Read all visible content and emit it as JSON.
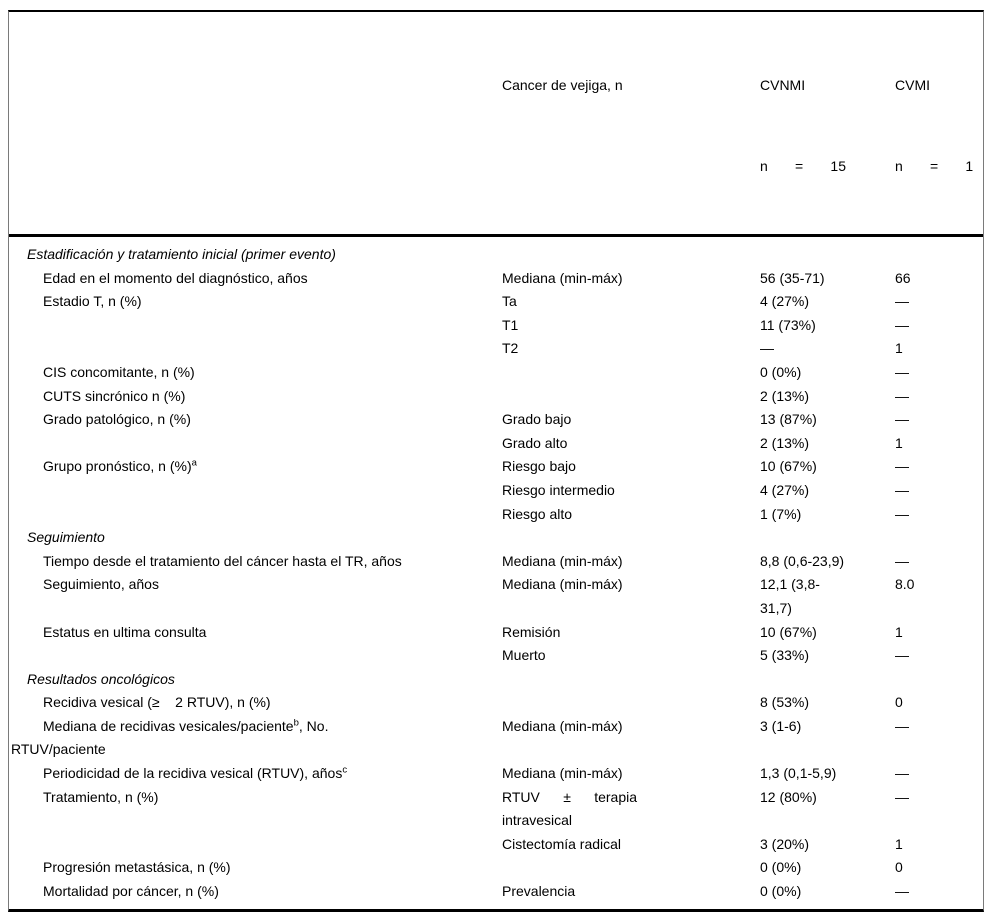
{
  "table": {
    "header": {
      "col1_label": "",
      "col2_label": "Cancer de vejiga, n",
      "cvnmi": {
        "label": "CVNMI",
        "n_line": "n       =       15"
      },
      "cvmi": {
        "label": "CVMI",
        "n_line": "n       =       1"
      }
    },
    "rows": [
      {
        "type": "section",
        "label": "Estadificación y tratamiento inicial (primer evento)",
        "col2": "",
        "cvnmi": "",
        "cvmi": ""
      },
      {
        "type": "item",
        "label": "Edad en el momento del diagnóstico, años",
        "col2": "Mediana (min-máx)",
        "cvnmi": "56 (35-71)",
        "cvmi": "66"
      },
      {
        "type": "item",
        "label": "Estadio T, n (%)",
        "col2": "Ta",
        "cvnmi": "4 (27%)",
        "cvmi": "—"
      },
      {
        "type": "item",
        "label": "",
        "col2": "T1",
        "cvnmi": "11 (73%)",
        "cvmi": "—"
      },
      {
        "type": "item",
        "label": "",
        "col2": "T2",
        "cvnmi": "—",
        "cvmi": "1"
      },
      {
        "type": "item",
        "label": "CIS concomitante, n (%)",
        "col2": "",
        "cvnmi": "0 (0%)",
        "cvmi": "—"
      },
      {
        "type": "item",
        "label": "CUTS sincrónico n (%)",
        "col2": "",
        "cvnmi": "2 (13%)",
        "cvmi": "—"
      },
      {
        "type": "item",
        "label": "Grado patológico, n (%)",
        "col2": "Grado bajo",
        "cvnmi": "13 (87%)",
        "cvmi": "—"
      },
      {
        "type": "item",
        "label": "",
        "col2": "Grado alto",
        "cvnmi": "2 (13%)",
        "cvmi": "1"
      },
      {
        "type": "item",
        "label": "Grupo pronóstico, n (%)",
        "sup": "a",
        "col2": "Riesgo bajo",
        "cvnmi": "10 (67%)",
        "cvmi": "—"
      },
      {
        "type": "item",
        "label": "",
        "col2": "Riesgo intermedio",
        "cvnmi": "4 (27%)",
        "cvmi": "—"
      },
      {
        "type": "item",
        "label": "",
        "col2": "Riesgo alto",
        "cvnmi": "1 (7%)",
        "cvmi": "—"
      },
      {
        "type": "section",
        "label": "Seguimiento",
        "col2": "",
        "cvnmi": "",
        "cvmi": ""
      },
      {
        "type": "item",
        "label": "Tiempo desde el tratamiento del cáncer hasta el TR, años",
        "col2": "Mediana (min-máx)",
        "cvnmi": "8,8 (0,6-23,9)",
        "cvmi": "—"
      },
      {
        "type": "item",
        "label": "Seguimiento, años",
        "col2": "Mediana (min-máx)",
        "cvnmi": "12,1 (3,8-\n31,7)",
        "cvmi": "8.0"
      },
      {
        "type": "item",
        "label": "Estatus en ultima consulta",
        "col2": "Remisión",
        "cvnmi": "10 (67%)",
        "cvmi": "1"
      },
      {
        "type": "item",
        "label": "",
        "col2": "Muerto",
        "cvnmi": "5 (33%)",
        "cvmi": "—"
      },
      {
        "type": "section",
        "label": "Resultados oncológicos",
        "col2": "",
        "cvnmi": "",
        "cvmi": ""
      },
      {
        "type": "item",
        "label": "Recidiva vesical (≥    2 RTUV), n (%)",
        "col2": "",
        "cvnmi": "8 (53%)",
        "cvmi": "0"
      },
      {
        "type": "item",
        "label": "Mediana de recidivas vesicales/paciente",
        "sup": "b",
        "label2": ", No.\nRTUV/paciente",
        "col2": "Mediana (min-máx)",
        "cvnmi": "3 (1-6)",
        "cvmi": "—"
      },
      {
        "type": "item",
        "label": "Periodicidad de la recidiva vesical (RTUV), años",
        "sup": "c",
        "col2": "Mediana (min-máx)",
        "cvnmi": "1,3 (0,1-5,9)",
        "cvmi": "—"
      },
      {
        "type": "item",
        "label": "Tratamiento, n (%)",
        "col2": "RTUV      ±      terapia\nintravesical",
        "cvnmi": "12 (80%)",
        "cvmi": "—"
      },
      {
        "type": "item",
        "label": "",
        "col2": "Cistectomía radical",
        "cvnmi": "3 (20%)",
        "cvmi": "1"
      },
      {
        "type": "item",
        "label": "Progresión metastásica, n (%)",
        "col2": "",
        "cvnmi": "0 (0%)",
        "cvmi": "0"
      },
      {
        "type": "item",
        "label": "Mortalidad por cáncer, n (%)",
        "col2": "Prevalencia",
        "cvnmi": "0 (0%)",
        "cvmi": "—"
      }
    ]
  }
}
